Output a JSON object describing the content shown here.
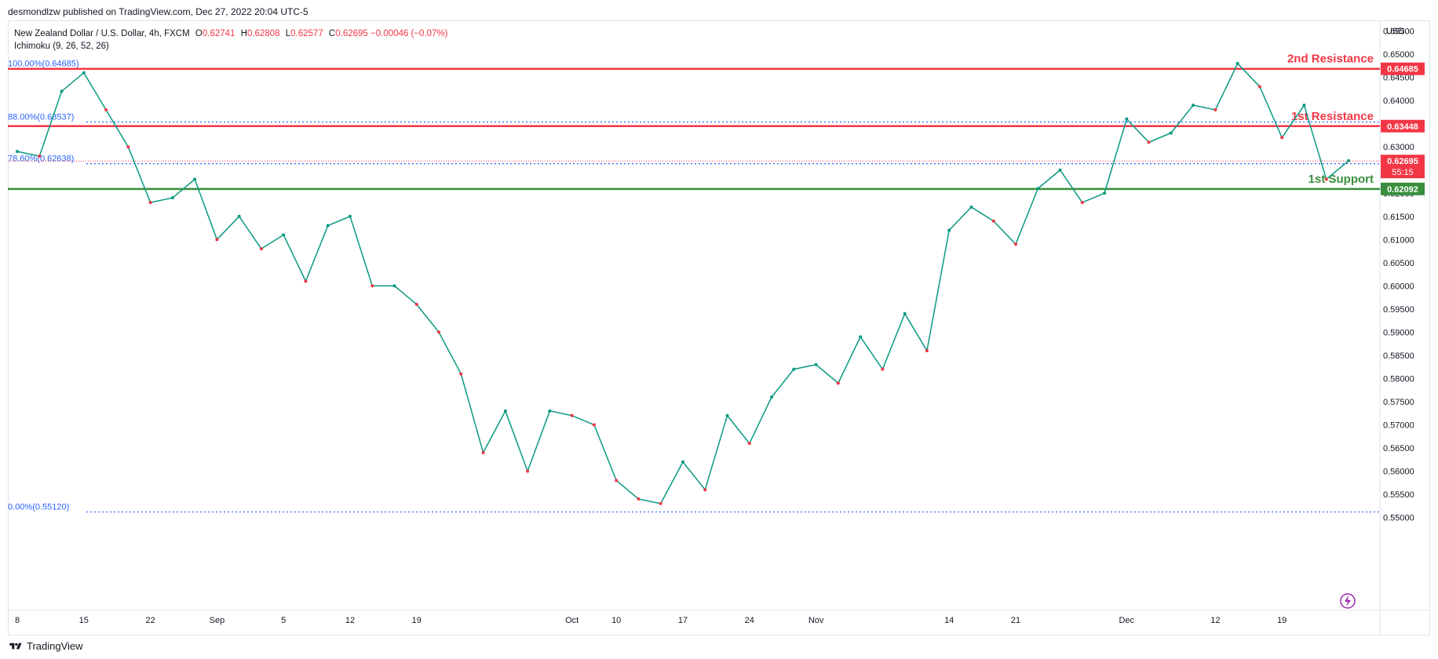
{
  "header": {
    "publisher": "desmondlzw published on TradingView.com, Dec 27, 2022 20:04 UTC-5"
  },
  "legend": {
    "symbol": "New Zealand Dollar / U.S. Dollar, 4h, FXCM",
    "ohlc": [
      {
        "key": "O",
        "value": "0.62741"
      },
      {
        "key": "H",
        "value": "0.62808"
      },
      {
        "key": "L",
        "value": "0.62577"
      },
      {
        "key": "C",
        "value": "0.62695"
      }
    ],
    "change": "−0.00046 (−0.07%)",
    "indicator": "Ichimoku (9, 26, 52, 26)"
  },
  "footer": {
    "brand": "TradingView"
  },
  "chart_data": {
    "type": "line",
    "currency": "USD",
    "ylim": [
      0.5496,
      0.6573
    ],
    "y_ticks": [
      "0.65500",
      "0.65000",
      "0.64500",
      "0.64000",
      "0.63500",
      "0.63000",
      "0.62500",
      "0.62000",
      "0.61500",
      "0.61000",
      "0.60500",
      "0.60000",
      "0.59500",
      "0.59000",
      "0.58500",
      "0.58000",
      "0.57500",
      "0.57000",
      "0.56500",
      "0.56000",
      "0.55500",
      "0.55000"
    ],
    "x_ticks": [
      "8",
      "15",
      "22",
      "Sep",
      "5",
      "12",
      "19",
      "Oct",
      "10",
      "17",
      "24",
      "Nov",
      "14",
      "21",
      "Dec",
      "12",
      "19"
    ],
    "fibonacci": [
      {
        "label": "100.00%(0.64685)",
        "value": 0.64685
      },
      {
        "label": "88.00%(0.63537)",
        "value": 0.63537
      },
      {
        "label": "78.60%(0.62638)",
        "value": 0.62638
      },
      {
        "label": "0.00%(0.55120)",
        "value": 0.5512
      }
    ],
    "levels": [
      {
        "name": "2nd Resistance",
        "value": 0.64685,
        "price_label": "0.64685",
        "color": "#f23645"
      },
      {
        "name": "1st Resistance",
        "value": 0.63448,
        "price_label": "0.63448",
        "color": "#f23645"
      },
      {
        "name": "1st Support",
        "value": 0.62092,
        "price_label": "0.62092",
        "color": "#388e3c"
      }
    ],
    "last_price": {
      "value": 0.62695,
      "label": "0.62695",
      "countdown": "55:15",
      "color": "#f23645"
    },
    "series": [
      {
        "name": "NZDUSD",
        "x": [
          "Aug 08",
          "Aug 10",
          "Aug 12",
          "Aug 15",
          "Aug 17",
          "Aug 19",
          "Aug 22",
          "Aug 24",
          "Aug 26",
          "Aug 29",
          "Aug 31",
          "Sep 02",
          "Sep 05",
          "Sep 07",
          "Sep 09",
          "Sep 12",
          "Sep 14",
          "Sep 16",
          "Sep 19",
          "Sep 21",
          "Sep 23",
          "Sep 26",
          "Sep 28",
          "Sep 30",
          "Oct 03",
          "Oct 05",
          "Oct 07",
          "Oct 10",
          "Oct 12",
          "Oct 13",
          "Oct 17",
          "Oct 19",
          "Oct 21",
          "Oct 24",
          "Oct 26",
          "Oct 28",
          "Oct 31",
          "Nov 02",
          "Nov 04",
          "Nov 07",
          "Nov 09",
          "Nov 11",
          "Nov 14",
          "Nov 16",
          "Nov 18",
          "Nov 21",
          "Nov 23",
          "Nov 25",
          "Nov 28",
          "Nov 30",
          "Dec 02",
          "Dec 05",
          "Dec 07",
          "Dec 09",
          "Dec 12",
          "Dec 13",
          "Dec 15",
          "Dec 19",
          "Dec 21",
          "Dec 23",
          "Dec 27"
        ],
        "values": [
          0.629,
          0.628,
          0.642,
          0.646,
          0.638,
          0.63,
          0.618,
          0.619,
          0.623,
          0.61,
          0.615,
          0.608,
          0.611,
          0.601,
          0.613,
          0.615,
          0.6,
          0.6,
          0.596,
          0.59,
          0.581,
          0.564,
          0.573,
          0.56,
          0.573,
          0.572,
          0.57,
          0.558,
          0.554,
          0.553,
          0.562,
          0.556,
          0.572,
          0.566,
          0.576,
          0.582,
          0.583,
          0.579,
          0.589,
          0.582,
          0.594,
          0.586,
          0.612,
          0.617,
          0.614,
          0.609,
          0.621,
          0.625,
          0.618,
          0.62,
          0.636,
          0.631,
          0.633,
          0.639,
          0.638,
          0.648,
          0.643,
          0.632,
          0.639,
          0.623,
          0.627
        ]
      }
    ]
  }
}
